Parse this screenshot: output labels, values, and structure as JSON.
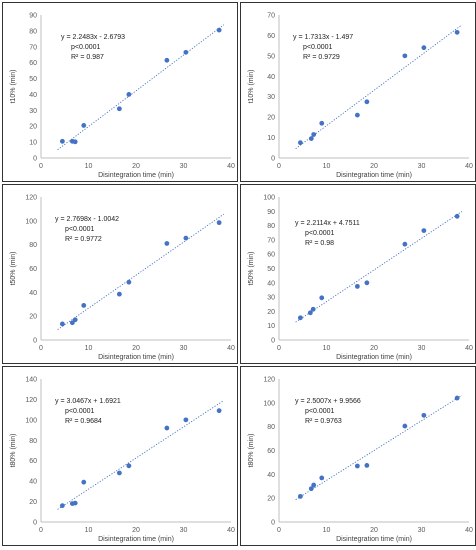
{
  "chart_data": [
    {
      "type": "scatter",
      "xlabel": "Disintegration time (min)",
      "ylabel": "t10% (min)",
      "xlim": [
        0,
        40
      ],
      "ylim": [
        0,
        90
      ],
      "xticks": [
        0,
        10,
        20,
        30,
        40
      ],
      "yticks": [
        0,
        10,
        20,
        30,
        40,
        50,
        60,
        70,
        80,
        90
      ],
      "trendline": {
        "slope": 2.2483,
        "intercept": -2.6793,
        "style": "dotted"
      },
      "annotation": [
        "y = 2.2483x - 2.6793",
        "p<0.0001",
        "R² = 0.987"
      ],
      "grid": false,
      "points": [
        {
          "x": 4.5,
          "y": 10.5
        },
        {
          "x": 6.6,
          "y": 10.5
        },
        {
          "x": 7.2,
          "y": 10.2
        },
        {
          "x": 9.0,
          "y": 20.5
        },
        {
          "x": 16.5,
          "y": 31.0
        },
        {
          "x": 18.5,
          "y": 40.0
        },
        {
          "x": 26.5,
          "y": 61.5
        },
        {
          "x": 30.5,
          "y": 66.5
        },
        {
          "x": 37.5,
          "y": 80.5
        }
      ]
    },
    {
      "type": "scatter",
      "xlabel": "Disintegration time (min)",
      "ylabel": "t10% (min)",
      "xlim": [
        0,
        40
      ],
      "ylim": [
        0,
        70
      ],
      "xticks": [
        0,
        10,
        20,
        30,
        40
      ],
      "yticks": [
        0,
        10,
        20,
        30,
        40,
        50,
        60,
        70
      ],
      "trendline": {
        "slope": 1.7313,
        "intercept": -1.497,
        "style": "dotted"
      },
      "annotation": [
        "y = 1.7313x - 1.497",
        "p<0.0001",
        "R² = 0.9729"
      ],
      "grid": false,
      "points": [
        {
          "x": 4.5,
          "y": 7.5
        },
        {
          "x": 6.8,
          "y": 9.5
        },
        {
          "x": 7.3,
          "y": 11.5
        },
        {
          "x": 9.0,
          "y": 17.0
        },
        {
          "x": 16.5,
          "y": 21.0
        },
        {
          "x": 18.5,
          "y": 27.5
        },
        {
          "x": 26.5,
          "y": 50.0
        },
        {
          "x": 30.5,
          "y": 54.0
        },
        {
          "x": 37.5,
          "y": 61.5
        }
      ]
    },
    {
      "type": "scatter",
      "xlabel": "Disintegration time (min)",
      "ylabel": "t50% (min)",
      "xlim": [
        0,
        40
      ],
      "ylim": [
        0,
        120
      ],
      "xticks": [
        0,
        10,
        20,
        30,
        40
      ],
      "yticks": [
        0,
        20,
        40,
        60,
        80,
        100,
        120
      ],
      "trendline": {
        "slope": 2.7698,
        "intercept": -1.0042,
        "style": "dotted"
      },
      "annotation": [
        "y = 2.7698x - 1.0042",
        "p<0.0001",
        "R² = 0.9772"
      ],
      "grid": false,
      "points": [
        {
          "x": 4.5,
          "y": 13.5
        },
        {
          "x": 6.6,
          "y": 14.5
        },
        {
          "x": 7.2,
          "y": 17.0
        },
        {
          "x": 9.0,
          "y": 29.0
        },
        {
          "x": 16.5,
          "y": 38.5
        },
        {
          "x": 18.5,
          "y": 48.5
        },
        {
          "x": 26.5,
          "y": 81.0
        },
        {
          "x": 30.5,
          "y": 85.5
        },
        {
          "x": 37.5,
          "y": 98.5
        }
      ]
    },
    {
      "type": "scatter",
      "xlabel": "Disintegration time (min)",
      "ylabel": "t50% (min)",
      "xlim": [
        0,
        40
      ],
      "ylim": [
        0,
        100
      ],
      "xticks": [
        0,
        10,
        20,
        30,
        40
      ],
      "yticks": [
        0,
        10,
        20,
        30,
        40,
        50,
        60,
        70,
        80,
        90,
        100
      ],
      "trendline": {
        "slope": 2.2114,
        "intercept": 4.7511,
        "style": "dotted"
      },
      "annotation": [
        "y = 2.2114x + 4.7511",
        "p<0.0001",
        "R² = 0.98"
      ],
      "grid": false,
      "points": [
        {
          "x": 4.5,
          "y": 15.5
        },
        {
          "x": 6.6,
          "y": 19.0
        },
        {
          "x": 7.2,
          "y": 21.5
        },
        {
          "x": 9.0,
          "y": 29.5
        },
        {
          "x": 16.5,
          "y": 37.5
        },
        {
          "x": 18.5,
          "y": 40.0
        },
        {
          "x": 26.5,
          "y": 67.0
        },
        {
          "x": 30.5,
          "y": 76.5
        },
        {
          "x": 37.5,
          "y": 86.5
        }
      ]
    },
    {
      "type": "scatter",
      "xlabel": "Disintegration time (min)",
      "ylabel": "t80% (min)",
      "xlim": [
        0,
        40
      ],
      "ylim": [
        0,
        140
      ],
      "xticks": [
        0,
        10,
        20,
        30,
        40
      ],
      "yticks": [
        0,
        20,
        40,
        60,
        80,
        100,
        120,
        140
      ],
      "trendline": {
        "slope": 3.0467,
        "intercept": 1.6921,
        "style": "dotted"
      },
      "annotation": [
        "y = 3.0467x + 1.6921",
        "p<0.0001",
        "R² = 0.9684"
      ],
      "grid": false,
      "points": [
        {
          "x": 4.5,
          "y": 16.0
        },
        {
          "x": 6.6,
          "y": 18.0
        },
        {
          "x": 7.2,
          "y": 18.5
        },
        {
          "x": 9.0,
          "y": 39.0
        },
        {
          "x": 16.5,
          "y": 48.0
        },
        {
          "x": 18.5,
          "y": 55.0
        },
        {
          "x": 26.5,
          "y": 92.0
        },
        {
          "x": 30.5,
          "y": 100.0
        },
        {
          "x": 37.5,
          "y": 109.0
        }
      ]
    },
    {
      "type": "scatter",
      "xlabel": "Disintegration time (min)",
      "ylabel": "t80% (min)",
      "xlim": [
        0,
        40
      ],
      "ylim": [
        0,
        120
      ],
      "xticks": [
        0,
        10,
        20,
        30,
        40
      ],
      "yticks": [
        0,
        20,
        40,
        60,
        80,
        100,
        120
      ],
      "trendline": {
        "slope": 2.5007,
        "intercept": 9.9566,
        "style": "dotted"
      },
      "annotation": [
        "y = 2.5007x + 9.9566",
        "p<0.0001",
        "R² = 0.9763"
      ],
      "grid": false,
      "points": [
        {
          "x": 4.5,
          "y": 21.5
        },
        {
          "x": 6.8,
          "y": 28.0
        },
        {
          "x": 7.3,
          "y": 31.0
        },
        {
          "x": 9.0,
          "y": 37.0
        },
        {
          "x": 16.5,
          "y": 47.0
        },
        {
          "x": 18.5,
          "y": 47.5
        },
        {
          "x": 26.5,
          "y": 80.5
        },
        {
          "x": 30.5,
          "y": 89.5
        },
        {
          "x": 37.5,
          "y": 104.0
        }
      ]
    }
  ],
  "colors": {
    "point": "#4472c4",
    "trendline": "#4472c4",
    "axis": "#bfbfbf",
    "tick_text": "#595959"
  }
}
